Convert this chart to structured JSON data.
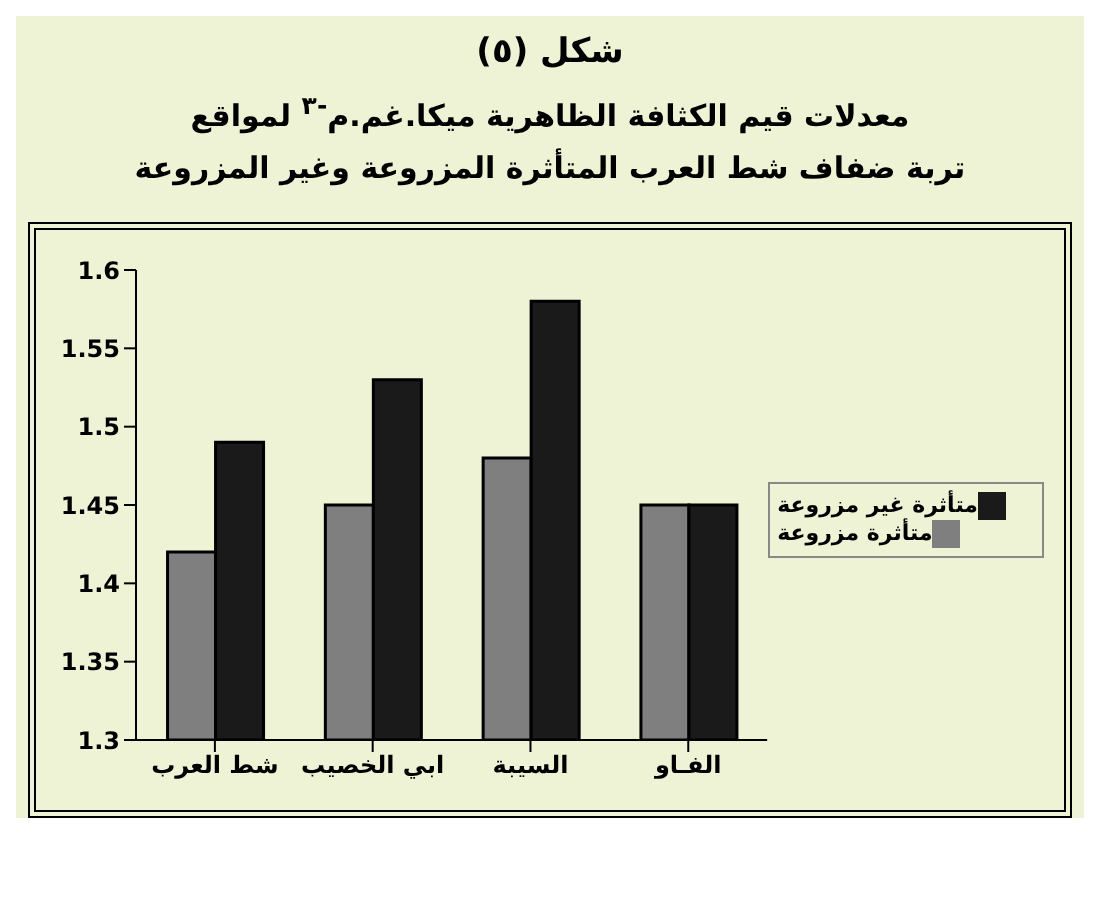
{
  "chart_data": {
    "type": "bar",
    "title": "شكل (٥)",
    "subtitle": "معدلات قيم الكثافة الظاهرية ميكا.غم.م$^{-٣}$ لمواقع\nتربة ضفاف شط العرب المتأثرة المزروعة وغير المزروعة",
    "categories": [
      "شط العرب",
      "ابي الخصيب",
      "السيبة",
      "الفـاو"
    ],
    "series": [
      {
        "name": "متأثرة مزروعة",
        "color": "#7f7f7f",
        "values": [
          1.42,
          1.45,
          1.48,
          1.45
        ]
      },
      {
        "name": "متأثرة غير مزروعة",
        "color": "#1a1a1a",
        "values": [
          1.49,
          1.53,
          1.58,
          1.45
        ]
      }
    ],
    "ylim": [
      1.3,
      1.6
    ],
    "yticks": [
      1.3,
      1.35,
      1.4,
      1.45,
      1.5,
      1.55,
      1.6
    ],
    "grid": false,
    "legend": "right"
  }
}
